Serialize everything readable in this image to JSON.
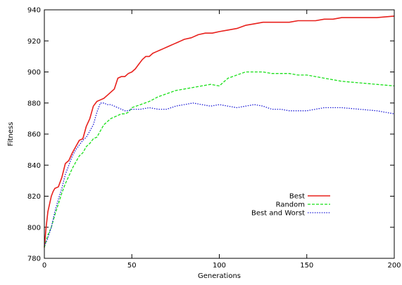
{
  "chart_data": {
    "type": "line",
    "title": "",
    "xlabel": "Generations",
    "ylabel": "Fitness",
    "xlim": [
      0,
      200
    ],
    "ylim": [
      780,
      940
    ],
    "xticks": [
      0,
      50,
      100,
      150,
      200
    ],
    "yticks": [
      780,
      800,
      820,
      840,
      860,
      880,
      900,
      920,
      940
    ],
    "grid": false,
    "legend_position": "center-right",
    "series": [
      {
        "name": "Best",
        "color": "#e8201c",
        "style": "solid",
        "x": [
          0,
          1,
          2,
          4,
          5,
          6,
          8,
          10,
          12,
          14,
          16,
          18,
          20,
          22,
          24,
          26,
          28,
          30,
          32,
          34,
          36,
          38,
          40,
          42,
          44,
          46,
          48,
          50,
          52,
          54,
          56,
          58,
          60,
          62,
          64,
          66,
          68,
          70,
          72,
          74,
          76,
          78,
          80,
          84,
          88,
          92,
          96,
          100,
          105,
          110,
          115,
          120,
          125,
          130,
          135,
          140,
          145,
          150,
          155,
          160,
          165,
          170,
          180,
          190,
          200
        ],
        "values": [
          787,
          800,
          810,
          820,
          823,
          825,
          826,
          832,
          841,
          843,
          848,
          852,
          856,
          857,
          865,
          870,
          878,
          881,
          882,
          883,
          885,
          887,
          889,
          896,
          897,
          897,
          899,
          900,
          902,
          905,
          908,
          910,
          910,
          912,
          913,
          914,
          915,
          916,
          917,
          918,
          919,
          920,
          921,
          922,
          924,
          925,
          925,
          926,
          927,
          928,
          930,
          931,
          932,
          932,
          932,
          932,
          933,
          933,
          933,
          934,
          934,
          935,
          935,
          935,
          936
        ]
      },
      {
        "name": "Random",
        "color": "#19e019",
        "style": "dashed",
        "x": [
          0,
          2,
          4,
          6,
          8,
          10,
          12,
          14,
          16,
          18,
          20,
          22,
          24,
          26,
          28,
          30,
          32,
          34,
          36,
          38,
          40,
          42,
          44,
          46,
          48,
          50,
          55,
          60,
          65,
          70,
          75,
          80,
          85,
          90,
          95,
          100,
          105,
          110,
          115,
          120,
          125,
          130,
          135,
          140,
          145,
          150,
          155,
          160,
          170,
          180,
          190,
          200
        ],
        "values": [
          787,
          795,
          800,
          808,
          815,
          822,
          828,
          833,
          838,
          842,
          846,
          848,
          852,
          854,
          857,
          858,
          862,
          866,
          868,
          870,
          871,
          872,
          873,
          873,
          874,
          877,
          879,
          881,
          884,
          886,
          888,
          889,
          890,
          891,
          892,
          891,
          896,
          898,
          900,
          900,
          900,
          899,
          899,
          899,
          898,
          898,
          897,
          896,
          894,
          893,
          892,
          891
        ]
      },
      {
        "name": "Best and Worst",
        "color": "#1c1cd6",
        "style": "dotted",
        "x": [
          0,
          2,
          4,
          6,
          8,
          10,
          12,
          14,
          16,
          18,
          20,
          22,
          24,
          26,
          28,
          30,
          32,
          34,
          36,
          38,
          40,
          42,
          44,
          46,
          48,
          50,
          55,
          60,
          65,
          70,
          75,
          80,
          85,
          90,
          95,
          100,
          105,
          110,
          115,
          120,
          125,
          130,
          135,
          140,
          145,
          150,
          155,
          160,
          170,
          180,
          190,
          200
        ],
        "values": [
          788,
          793,
          800,
          810,
          818,
          825,
          834,
          840,
          846,
          850,
          853,
          856,
          858,
          862,
          866,
          874,
          880,
          880,
          879,
          879,
          878,
          877,
          876,
          875,
          875,
          876,
          876,
          877,
          876,
          876,
          878,
          879,
          880,
          879,
          878,
          879,
          878,
          877,
          878,
          879,
          878,
          876,
          876,
          875,
          875,
          875,
          876,
          877,
          877,
          876,
          875,
          873
        ]
      }
    ]
  }
}
